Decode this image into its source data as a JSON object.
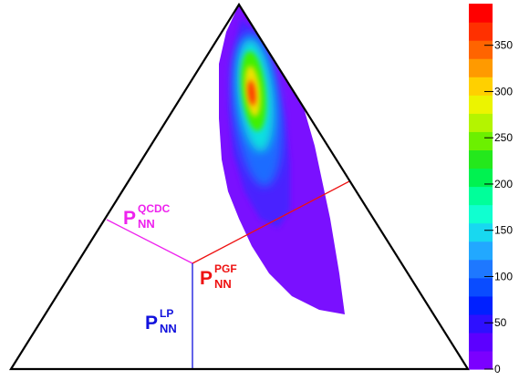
{
  "chart_data": {
    "type": "heatmap",
    "colorbar": {
      "min": 0,
      "max": 395,
      "ticks": [
        0,
        50,
        100,
        150,
        200,
        250,
        300,
        350
      ],
      "tick_labels": [
        "0",
        "50",
        "100",
        "150",
        "200",
        "250",
        "300",
        "350"
      ],
      "palette": [
        "#7b00ff",
        "#5c00ff",
        "#2e10ff",
        "#0020ff",
        "#0a4cff",
        "#1e78ff",
        "#22a8ff",
        "#18d8f0",
        "#10ffd0",
        "#00ff9a",
        "#00f250",
        "#24e81c",
        "#6cf000",
        "#b4f400",
        "#ecf400",
        "#ffd000",
        "#ff9a00",
        "#ff6400",
        "#ff3000",
        "#ff0000"
      ]
    },
    "regions": [
      {
        "label_main": "P",
        "label_sub": "NN",
        "label_sup": "QCDC",
        "color": "#ee22ee"
      },
      {
        "label_main": "P",
        "label_sub": "NN",
        "label_sup": "PGF",
        "color": "#ee1111"
      },
      {
        "label_main": "P",
        "label_sub": "NN",
        "label_sup": "LP",
        "color": "#1111dd"
      }
    ],
    "peak_value": 390
  }
}
